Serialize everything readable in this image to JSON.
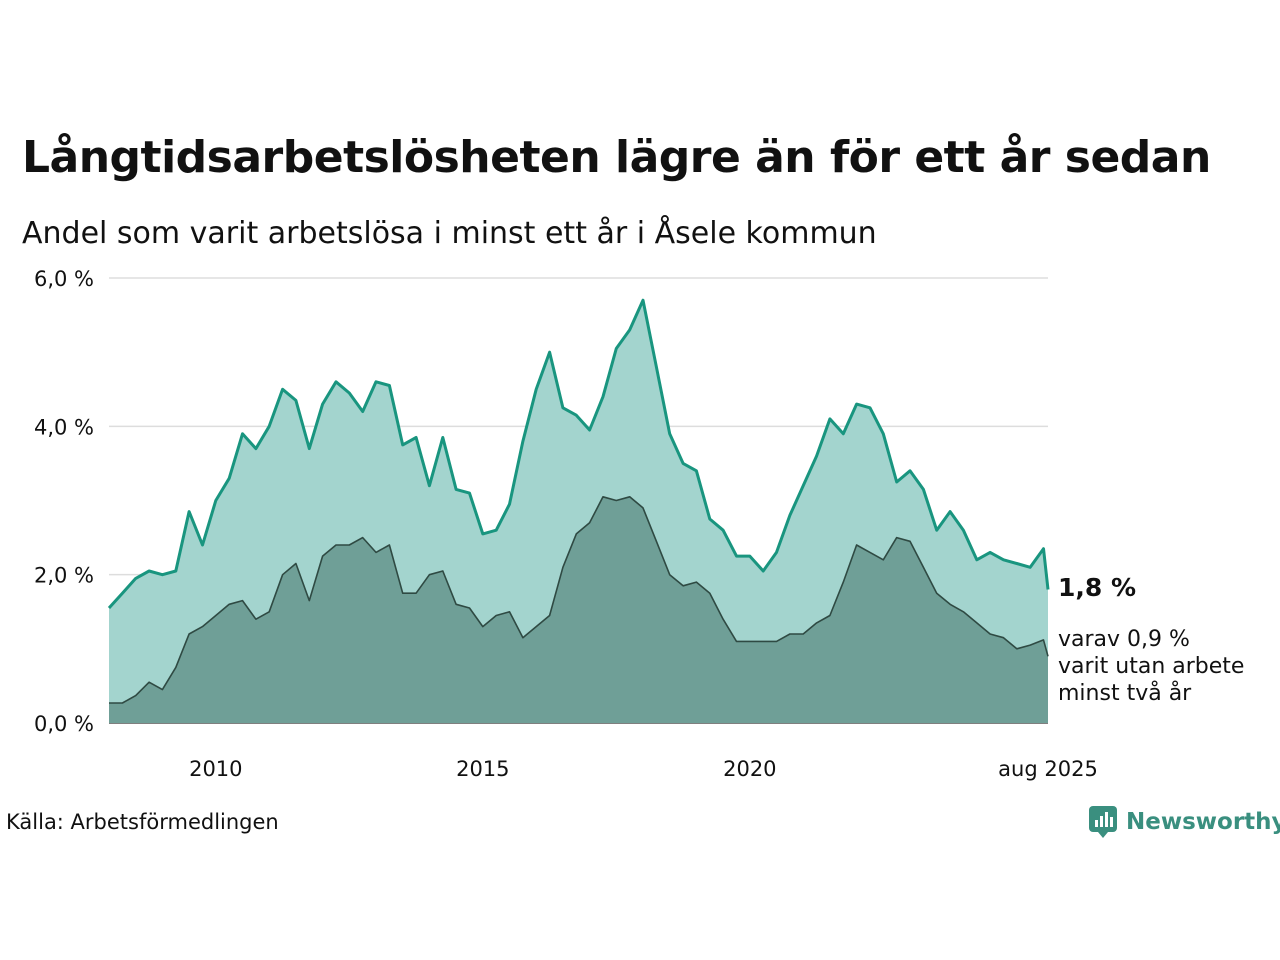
{
  "title": "Långtidsarbetslösheten lägre än för ett år sedan",
  "subtitle": "Andel som varit arbetslösa i minst ett år i Åsele kommun",
  "source": "Källa: Arbetsförmedlingen",
  "brand": "Newsworthy",
  "end_label": {
    "value": "1,8 %",
    "line1": "varav 0,9 %",
    "line2": "varit utan arbete",
    "line3": "minst två år"
  },
  "colors": {
    "upper_line": "#19957f",
    "upper_fill": "#a3d4ce",
    "lower_line": "#2f4a43",
    "lower_fill": "#6f9f97",
    "grid": "#dddddd"
  },
  "chart_data": {
    "type": "area",
    "y_ticks": [
      "0,0 %",
      "2,0 %",
      "4,0 %",
      "6,0 %"
    ],
    "ylim": [
      0,
      6
    ],
    "xlim": [
      "2008-01",
      "2025-08"
    ],
    "x_ticks": [
      {
        "x": "2010-01",
        "label": "2010"
      },
      {
        "x": "2015-01",
        "label": "2015"
      },
      {
        "x": "2020-01",
        "label": "2020"
      },
      {
        "x": "2025-08",
        "label": "aug 2025"
      }
    ],
    "grid": true,
    "series": [
      {
        "role": "upper",
        "points": [
          [
            "2008-01",
            1.55
          ],
          [
            "2008-04",
            1.75
          ],
          [
            "2008-07",
            1.95
          ],
          [
            "2008-10",
            2.05
          ],
          [
            "2009-01",
            2.0
          ],
          [
            "2009-04",
            2.05
          ],
          [
            "2009-07",
            2.85
          ],
          [
            "2009-10",
            2.4
          ],
          [
            "2010-01",
            3.0
          ],
          [
            "2010-04",
            3.3
          ],
          [
            "2010-07",
            3.9
          ],
          [
            "2010-10",
            3.7
          ],
          [
            "2011-01",
            4.0
          ],
          [
            "2011-04",
            4.5
          ],
          [
            "2011-07",
            4.35
          ],
          [
            "2011-10",
            3.7
          ],
          [
            "2012-01",
            4.3
          ],
          [
            "2012-04",
            4.6
          ],
          [
            "2012-07",
            4.45
          ],
          [
            "2012-10",
            4.2
          ],
          [
            "2013-01",
            4.6
          ],
          [
            "2013-04",
            4.55
          ],
          [
            "2013-07",
            3.75
          ],
          [
            "2013-10",
            3.85
          ],
          [
            "2014-01",
            3.2
          ],
          [
            "2014-04",
            3.85
          ],
          [
            "2014-07",
            3.15
          ],
          [
            "2014-10",
            3.1
          ],
          [
            "2015-01",
            2.55
          ],
          [
            "2015-04",
            2.6
          ],
          [
            "2015-07",
            2.95
          ],
          [
            "2015-10",
            3.8
          ],
          [
            "2016-01",
            4.5
          ],
          [
            "2016-04",
            5.0
          ],
          [
            "2016-07",
            4.25
          ],
          [
            "2016-10",
            4.15
          ],
          [
            "2017-01",
            3.95
          ],
          [
            "2017-04",
            4.4
          ],
          [
            "2017-07",
            5.05
          ],
          [
            "2017-10",
            5.3
          ],
          [
            "2018-01",
            5.7
          ],
          [
            "2018-04",
            4.8
          ],
          [
            "2018-07",
            3.9
          ],
          [
            "2018-10",
            3.5
          ],
          [
            "2019-01",
            3.4
          ],
          [
            "2019-04",
            2.75
          ],
          [
            "2019-07",
            2.6
          ],
          [
            "2019-10",
            2.25
          ],
          [
            "2020-01",
            2.25
          ],
          [
            "2020-04",
            2.05
          ],
          [
            "2020-07",
            2.3
          ],
          [
            "2020-10",
            2.8
          ],
          [
            "2021-01",
            3.2
          ],
          [
            "2021-04",
            3.6
          ],
          [
            "2021-07",
            4.1
          ],
          [
            "2021-10",
            3.9
          ],
          [
            "2022-01",
            4.3
          ],
          [
            "2022-04",
            4.25
          ],
          [
            "2022-07",
            3.9
          ],
          [
            "2022-10",
            3.25
          ],
          [
            "2023-01",
            3.4
          ],
          [
            "2023-04",
            3.15
          ],
          [
            "2023-07",
            2.6
          ],
          [
            "2023-10",
            2.85
          ],
          [
            "2024-01",
            2.6
          ],
          [
            "2024-04",
            2.2
          ],
          [
            "2024-07",
            2.3
          ],
          [
            "2024-10",
            2.2
          ],
          [
            "2025-01",
            2.15
          ],
          [
            "2025-04",
            2.1
          ],
          [
            "2025-07",
            2.35
          ],
          [
            "2025-08",
            1.8
          ]
        ]
      },
      {
        "role": "lower",
        "points": [
          [
            "2008-01",
            0.27
          ],
          [
            "2008-04",
            0.27
          ],
          [
            "2008-07",
            0.37
          ],
          [
            "2008-10",
            0.55
          ],
          [
            "2009-01",
            0.45
          ],
          [
            "2009-04",
            0.75
          ],
          [
            "2009-07",
            1.2
          ],
          [
            "2009-10",
            1.3
          ],
          [
            "2010-01",
            1.45
          ],
          [
            "2010-04",
            1.6
          ],
          [
            "2010-07",
            1.65
          ],
          [
            "2010-10",
            1.4
          ],
          [
            "2011-01",
            1.5
          ],
          [
            "2011-04",
            2.0
          ],
          [
            "2011-07",
            2.15
          ],
          [
            "2011-10",
            1.65
          ],
          [
            "2012-01",
            2.25
          ],
          [
            "2012-04",
            2.4
          ],
          [
            "2012-07",
            2.4
          ],
          [
            "2012-10",
            2.5
          ],
          [
            "2013-01",
            2.3
          ],
          [
            "2013-04",
            2.4
          ],
          [
            "2013-07",
            1.75
          ],
          [
            "2013-10",
            1.75
          ],
          [
            "2014-01",
            2.0
          ],
          [
            "2014-04",
            2.05
          ],
          [
            "2014-07",
            1.6
          ],
          [
            "2014-10",
            1.55
          ],
          [
            "2015-01",
            1.3
          ],
          [
            "2015-04",
            1.45
          ],
          [
            "2015-07",
            1.5
          ],
          [
            "2015-10",
            1.15
          ],
          [
            "2016-01",
            1.3
          ],
          [
            "2016-04",
            1.45
          ],
          [
            "2016-07",
            2.1
          ],
          [
            "2016-10",
            2.55
          ],
          [
            "2017-01",
            2.7
          ],
          [
            "2017-04",
            3.05
          ],
          [
            "2017-07",
            3.0
          ],
          [
            "2017-10",
            3.05
          ],
          [
            "2018-01",
            2.9
          ],
          [
            "2018-04",
            2.45
          ],
          [
            "2018-07",
            2.0
          ],
          [
            "2018-10",
            1.85
          ],
          [
            "2019-01",
            1.9
          ],
          [
            "2019-04",
            1.75
          ],
          [
            "2019-07",
            1.4
          ],
          [
            "2019-10",
            1.1
          ],
          [
            "2020-01",
            1.1
          ],
          [
            "2020-04",
            1.1
          ],
          [
            "2020-07",
            1.1
          ],
          [
            "2020-10",
            1.2
          ],
          [
            "2021-01",
            1.2
          ],
          [
            "2021-04",
            1.35
          ],
          [
            "2021-07",
            1.45
          ],
          [
            "2021-10",
            1.9
          ],
          [
            "2022-01",
            2.4
          ],
          [
            "2022-04",
            2.3
          ],
          [
            "2022-07",
            2.2
          ],
          [
            "2022-10",
            2.5
          ],
          [
            "2023-01",
            2.45
          ],
          [
            "2023-04",
            2.1
          ],
          [
            "2023-07",
            1.75
          ],
          [
            "2023-10",
            1.6
          ],
          [
            "2024-01",
            1.5
          ],
          [
            "2024-04",
            1.35
          ],
          [
            "2024-07",
            1.2
          ],
          [
            "2024-10",
            1.15
          ],
          [
            "2025-01",
            1.0
          ],
          [
            "2025-04",
            1.05
          ],
          [
            "2025-07",
            1.12
          ],
          [
            "2025-08",
            0.9
          ]
        ]
      }
    ]
  }
}
